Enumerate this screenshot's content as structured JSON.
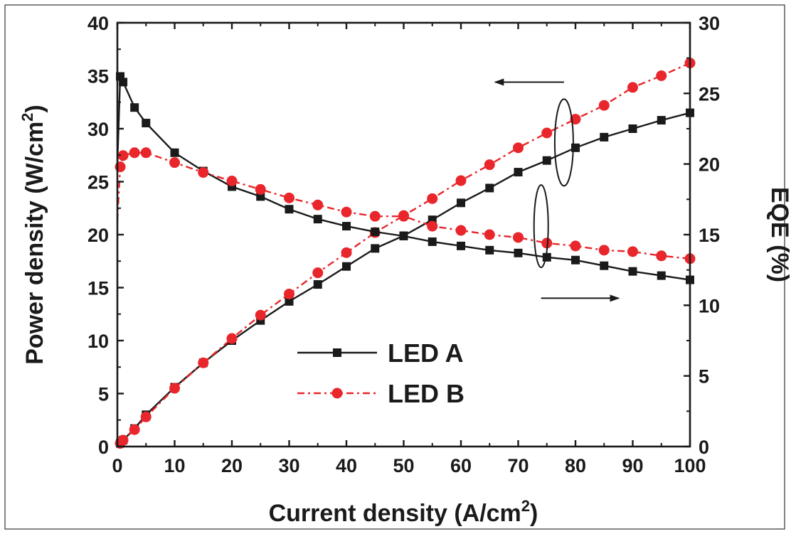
{
  "chart_data": {
    "type": "line",
    "xlabel": "Current density (A/cm",
    "xlabel_sup": "2",
    "xlabel_end": ")",
    "ylabel_left": "Power density (W/cm",
    "ylabel_left_sup": "2",
    "ylabel_left_end": ")",
    "ylabel_right": "EQE (%)",
    "xlim": [
      0,
      100
    ],
    "ylim_left": [
      0,
      40
    ],
    "ylim_right": [
      0,
      30
    ],
    "xticks": [
      "0",
      "10",
      "20",
      "30",
      "40",
      "50",
      "60",
      "70",
      "80",
      "90",
      "100"
    ],
    "yticks_left": [
      "0",
      "5",
      "10",
      "15",
      "20",
      "25",
      "30",
      "35",
      "40"
    ],
    "yticks_right": [
      "0",
      "5",
      "10",
      "15",
      "20",
      "25",
      "30"
    ],
    "legend": {
      "position": "center-left",
      "entries": [
        {
          "label": "LED A"
        },
        {
          "label": "LED B"
        }
      ]
    },
    "series": [
      {
        "name": "LED A",
        "metric": "power",
        "axis": "left",
        "color": "#1a1a1a",
        "marker": "square",
        "line": "solid",
        "x": [
          0,
          0.5,
          1,
          3,
          5,
          10,
          15,
          20,
          25,
          30,
          35,
          40,
          45,
          50,
          55,
          60,
          65,
          70,
          75,
          80,
          85,
          90,
          95,
          100
        ],
        "y": [
          0,
          0.3,
          0.6,
          1.7,
          3.0,
          5.6,
          7.9,
          10.0,
          11.9,
          13.7,
          15.3,
          17.0,
          18.7,
          19.9,
          21.4,
          23.0,
          24.4,
          25.9,
          27.0,
          28.2,
          29.2,
          30.0,
          30.8,
          31.5
        ]
      },
      {
        "name": "LED B",
        "metric": "power",
        "axis": "left",
        "color": "#e8262b",
        "marker": "circle",
        "line": "dashdot",
        "x": [
          0,
          0.5,
          1,
          3,
          5,
          10,
          15,
          20,
          25,
          30,
          35,
          40,
          45,
          50,
          55,
          60,
          65,
          70,
          75,
          80,
          85,
          90,
          95,
          100
        ],
        "y": [
          0,
          0.3,
          0.6,
          1.6,
          2.8,
          5.5,
          7.9,
          10.2,
          12.4,
          14.4,
          16.4,
          18.3,
          20.2,
          21.8,
          23.4,
          25.1,
          26.6,
          28.2,
          29.6,
          30.9,
          32.2,
          33.9,
          35.0,
          36.2
        ]
      },
      {
        "name": "LED A",
        "metric": "eqe",
        "axis": "right",
        "color": "#1a1a1a",
        "marker": "square",
        "line": "solid",
        "x": [
          0,
          0.5,
          1,
          3,
          5,
          10,
          15,
          20,
          25,
          30,
          35,
          40,
          45,
          50,
          55,
          60,
          65,
          70,
          75,
          80,
          85,
          90,
          95,
          100
        ],
        "y": [
          20,
          26.2,
          25.8,
          24.0,
          22.9,
          20.8,
          19.5,
          18.4,
          17.7,
          16.8,
          16.1,
          15.6,
          15.2,
          14.9,
          14.5,
          14.2,
          13.9,
          13.7,
          13.4,
          13.2,
          12.8,
          12.4,
          12.1,
          11.8
        ]
      },
      {
        "name": "LED B",
        "metric": "eqe",
        "axis": "right",
        "color": "#e8262b",
        "marker": "circle",
        "line": "dashdot",
        "x": [
          0,
          0.5,
          1,
          3,
          5,
          10,
          15,
          20,
          25,
          30,
          35,
          40,
          45,
          50,
          55,
          60,
          65,
          70,
          75,
          80,
          85,
          90,
          95,
          100
        ],
        "y": [
          16,
          19.8,
          20.6,
          20.8,
          20.8,
          20.1,
          19.4,
          18.8,
          18.2,
          17.6,
          17.1,
          16.6,
          16.3,
          16.3,
          15.6,
          15.3,
          15.0,
          14.8,
          14.4,
          14.2,
          13.9,
          13.8,
          13.5,
          13.3
        ]
      }
    ],
    "annotations": [
      {
        "type": "ellipse-arrow",
        "points_to": "left-axis",
        "groups": "power curves"
      },
      {
        "type": "ellipse-arrow",
        "points_to": "right-axis",
        "groups": "EQE curves"
      }
    ]
  }
}
